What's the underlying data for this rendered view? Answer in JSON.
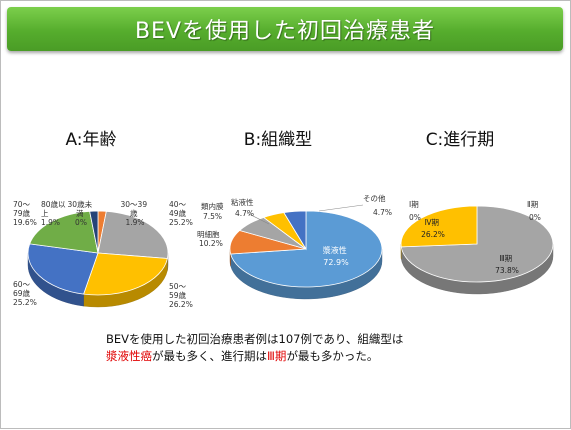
{
  "title": "BEVを使用した初回治療患者",
  "summary": {
    "line1": "BEVを使用した初回治療患者例は107例であり、組織型は",
    "line2_hl1": "漿液性癌",
    "line2_mid": "が最も多く、進行期は",
    "line2_hl2": "Ⅲ期",
    "line2_end": "が最も多かった。"
  },
  "chart_data": [
    {
      "type": "pie",
      "title": "A:年齢",
      "slices": [
        {
          "line1": "30歳未",
          "line2": "満",
          "value_label": "0%",
          "value": 0,
          "color": "#a5a5a5"
        },
        {
          "line1": "30～39",
          "line2": "歳",
          "value_label": "1.9%",
          "value": 1.9,
          "color": "#ed7d31"
        },
        {
          "line1": "40～",
          "line2": "49歳",
          "value_label": "25.2%",
          "value": 25.2,
          "color": "#a5a5a5"
        },
        {
          "line1": "50～",
          "line2": "59歳",
          "value_label": "26.2%",
          "value": 26.2,
          "color": "#ffc000"
        },
        {
          "line1": "60～",
          "line2": "69歳",
          "value_label": "25.2%",
          "value": 25.2,
          "color": "#4472c4"
        },
        {
          "line1": "70～",
          "line2": "79歳",
          "value_label": "19.6%",
          "value": 19.6,
          "color": "#70ad47"
        },
        {
          "line1": "80歳以",
          "line2": "上",
          "value_label": "1.9%",
          "value": 1.9,
          "color": "#264478"
        }
      ]
    },
    {
      "type": "pie",
      "title": "B:組織型",
      "slices": [
        {
          "name": "漿液性",
          "value_label": "72.9%",
          "value": 72.9,
          "color": "#5b9bd5"
        },
        {
          "name": "明細胞",
          "value_label": "10.2%",
          "value": 10.2,
          "color": "#ed7d31"
        },
        {
          "name": "類内膜",
          "value_label": "7.5%",
          "value": 7.5,
          "color": "#a5a5a5"
        },
        {
          "name": "粘液性",
          "value_label": "4.7%",
          "value": 4.7,
          "color": "#ffc000"
        },
        {
          "name": "その他",
          "value_label": "4.7%",
          "value": 4.7,
          "color": "#4472c4"
        }
      ]
    },
    {
      "type": "pie",
      "title": "C:進行期",
      "slices": [
        {
          "name": "Ⅰ期",
          "value_label": "0%",
          "value": 0,
          "color": "#5b9bd5"
        },
        {
          "name": "Ⅱ期",
          "value_label": "0%",
          "value": 0,
          "color": "#ed7d31"
        },
        {
          "name": "Ⅲ期",
          "value_label": "73.8%",
          "value": 73.8,
          "color": "#a5a5a5"
        },
        {
          "name": "Ⅳ期",
          "value_label": "26.2%",
          "value": 26.2,
          "color": "#ffc000"
        }
      ]
    }
  ]
}
